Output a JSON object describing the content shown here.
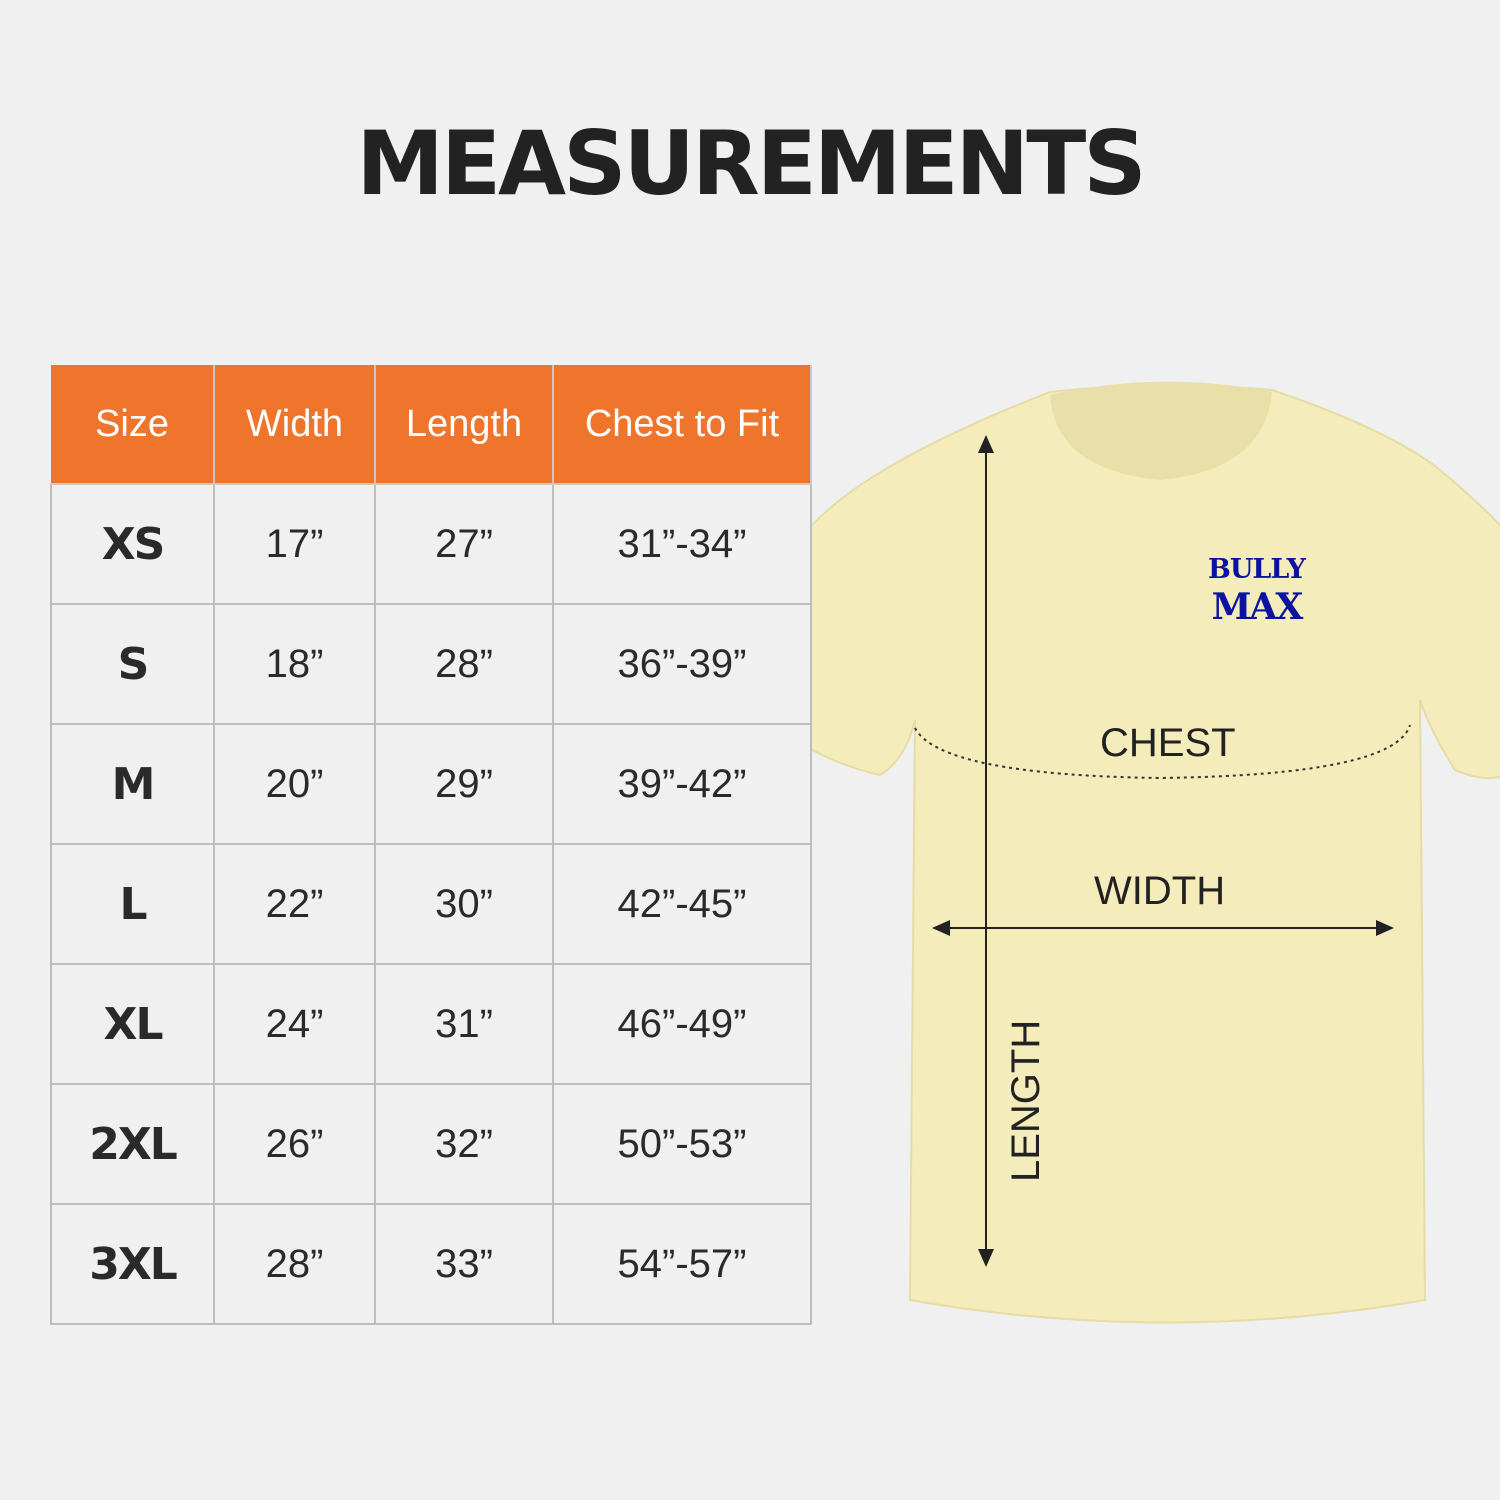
{
  "title": "MEASUREMENTS",
  "table": {
    "headers": [
      "Size",
      "Width",
      "Length",
      "Chest to Fit"
    ],
    "rows": [
      [
        "XS",
        "17”",
        "27”",
        "31”-34”"
      ],
      [
        "S",
        "18”",
        "28”",
        "36”-39”"
      ],
      [
        "M",
        "20”",
        "29”",
        "39”-42”"
      ],
      [
        "L",
        "22”",
        "30”",
        "42”-45”"
      ],
      [
        "XL",
        "24”",
        "31”",
        "46”-49”"
      ],
      [
        "2XL",
        "26”",
        "32”",
        "50”-53”"
      ],
      [
        "3XL",
        "28”",
        "33”",
        "54”-57”"
      ]
    ]
  },
  "diagram": {
    "chest_label": "CHEST",
    "width_label": "WIDTH",
    "length_label": "LENGTH",
    "logo_line1": "BULLY",
    "logo_line2": "MAX"
  },
  "colors": {
    "header": "#ef752d",
    "shirt": "#f5ecbb",
    "logo": "#0b13a0",
    "background": "#eff0ef"
  }
}
